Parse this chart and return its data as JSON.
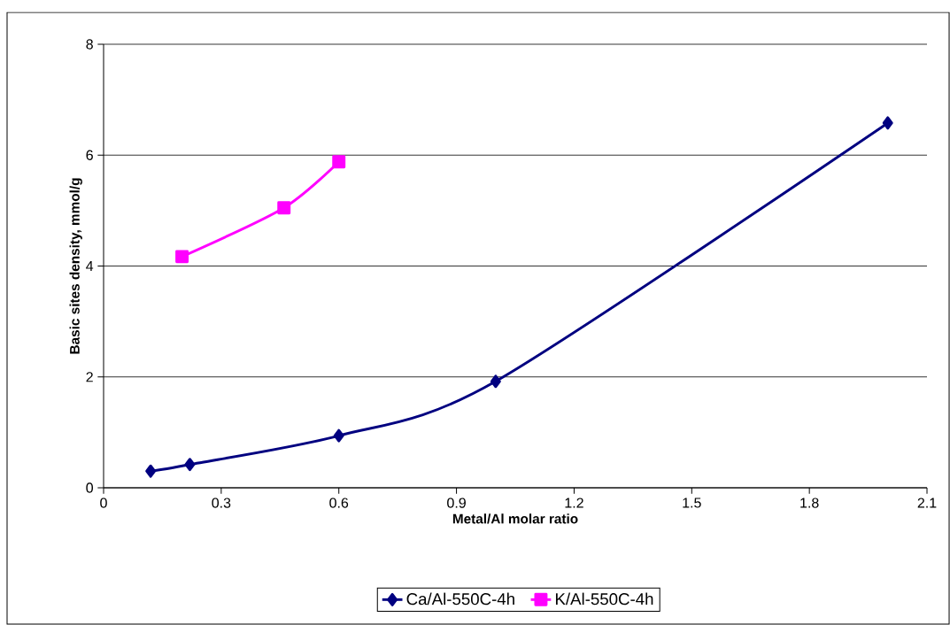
{
  "chart_data": {
    "type": "line",
    "xlabel": "Metal/Al molar ratio",
    "ylabel": "Basic sites density, mmol/g",
    "xlim": [
      0,
      2.1
    ],
    "xticks": [
      0,
      0.3,
      0.6,
      0.9,
      1.2,
      1.5,
      1.8,
      2.1
    ],
    "ylim": [
      0,
      8
    ],
    "yticks": [
      0,
      2,
      4,
      6,
      8
    ],
    "grid": "y",
    "legend": "bottom",
    "series": [
      {
        "name": "Ca/Al-550C-4h",
        "color": "#000080",
        "marker": "diamond",
        "x": [
          0.12,
          0.22,
          0.6,
          1.0,
          2.0
        ],
        "values": [
          0.3,
          0.42,
          0.94,
          1.92,
          6.58
        ]
      },
      {
        "name": "K/Al-550C-4h",
        "color": "#ff00ff",
        "marker": "square",
        "x": [
          0.2,
          0.46,
          0.6
        ],
        "values": [
          4.17,
          5.05,
          5.88
        ]
      }
    ]
  }
}
